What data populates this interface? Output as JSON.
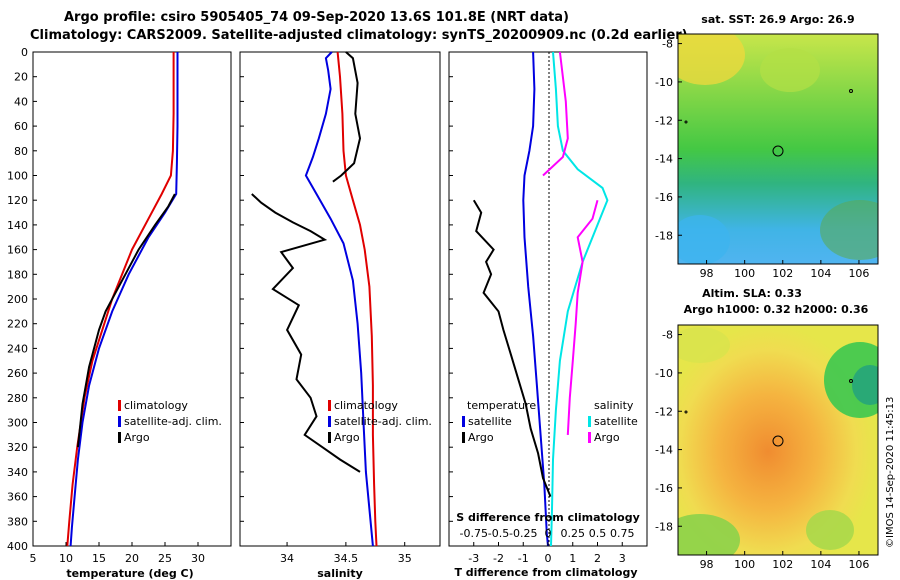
{
  "title": {
    "line1": "Argo profile: csiro 5905405_74 09-Sep-2020 13.6S 101.8E (NRT data)",
    "line2": "Climatology: CARS2009. Satellite-adjusted climatology: synTS_20200909.nc (0.2d earlier)"
  },
  "colors": {
    "climatology": "#e00000",
    "satellite": "#0000e0",
    "argo": "#000000",
    "s_diff": "#ff00ff",
    "t_diff": "#00e6e6"
  },
  "depth_ticks": [
    "0",
    "20",
    "40",
    "60",
    "80",
    "100",
    "120",
    "140",
    "160",
    "180",
    "200",
    "220",
    "240",
    "260",
    "280",
    "300",
    "320",
    "340",
    "360",
    "380",
    "400"
  ],
  "chart_data": [
    {
      "type": "line",
      "title": "",
      "xlabel": "temperature (deg C)",
      "ylabel": "",
      "xlim": [
        5,
        35
      ],
      "ylim": [
        400,
        0
      ],
      "xticks": [
        "5",
        "10",
        "15",
        "20",
        "25",
        "30"
      ],
      "legend": [
        "climatology",
        "satellite-adj. clim.",
        "Argo"
      ],
      "series": [
        {
          "name": "climatology",
          "points": [
            [
              26.3,
              0
            ],
            [
              26.3,
              50
            ],
            [
              26.2,
              80
            ],
            [
              25.9,
              100
            ],
            [
              24.5,
              115
            ],
            [
              22.5,
              135
            ],
            [
              20,
              160
            ],
            [
              17,
              200
            ],
            [
              15.5,
              225
            ],
            [
              14,
              250
            ],
            [
              12.8,
              280
            ],
            [
              11.7,
              320
            ],
            [
              11,
              350
            ],
            [
              10.5,
              380
            ],
            [
              10.2,
              400
            ]
          ]
        },
        {
          "name": "satellite-adj. clim.",
          "points": [
            [
              26.9,
              0
            ],
            [
              26.9,
              60
            ],
            [
              26.8,
              90
            ],
            [
              26.7,
              115
            ],
            [
              25,
              130
            ],
            [
              22.5,
              150
            ],
            [
              19.5,
              180
            ],
            [
              17,
              210
            ],
            [
              15,
              240
            ],
            [
              13.5,
              270
            ],
            [
              12.5,
              300
            ],
            [
              11.8,
              330
            ],
            [
              11.3,
              360
            ],
            [
              10.9,
              385
            ],
            [
              10.7,
              400
            ]
          ]
        },
        {
          "name": "Argo",
          "points": [
            [
              26.5,
              115
            ],
            [
              25.5,
              125
            ],
            [
              23.5,
              140
            ],
            [
              21,
              160
            ],
            [
              20.5,
              165
            ],
            [
              19,
              180
            ],
            [
              17.5,
              195
            ],
            [
              16,
              210
            ],
            [
              15,
              225
            ],
            [
              14.5,
              235
            ],
            [
              14,
              245
            ],
            [
              13.5,
              255
            ],
            [
              13,
              270
            ],
            [
              12.5,
              285
            ],
            [
              12.1,
              305
            ],
            [
              11.8,
              320
            ]
          ]
        }
      ]
    },
    {
      "type": "line",
      "title": "",
      "xlabel": "salinity",
      "ylabel": "",
      "xlim": [
        33.6,
        35.3
      ],
      "ylim": [
        400,
        0
      ],
      "xticks": [
        "34",
        "34.5",
        "35"
      ],
      "legend": [
        "climatology",
        "satellite-adj. clim.",
        "Argo"
      ],
      "series": [
        {
          "name": "climatology",
          "points": [
            [
              34.43,
              0
            ],
            [
              34.45,
              20
            ],
            [
              34.47,
              50
            ],
            [
              34.48,
              80
            ],
            [
              34.5,
              100
            ],
            [
              34.56,
              120
            ],
            [
              34.62,
              140
            ],
            [
              34.66,
              160
            ],
            [
              34.7,
              190
            ],
            [
              34.72,
              230
            ],
            [
              34.73,
              270
            ],
            [
              34.73,
              310
            ],
            [
              34.74,
              350
            ],
            [
              34.75,
              380
            ],
            [
              34.76,
              400
            ]
          ]
        },
        {
          "name": "satellite-adj. clim.",
          "points": [
            [
              34.38,
              0
            ],
            [
              34.33,
              5
            ],
            [
              34.35,
              15
            ],
            [
              34.37,
              30
            ],
            [
              34.33,
              50
            ],
            [
              34.27,
              70
            ],
            [
              34.22,
              85
            ],
            [
              34.16,
              100
            ],
            [
              34.25,
              115
            ],
            [
              34.37,
              135
            ],
            [
              34.48,
              155
            ],
            [
              34.56,
              185
            ],
            [
              34.6,
              220
            ],
            [
              34.63,
              260
            ],
            [
              34.65,
              300
            ],
            [
              34.67,
              340
            ],
            [
              34.7,
              370
            ],
            [
              34.73,
              400
            ]
          ]
        },
        {
          "name": "Argo",
          "points": [
            [
              34.5,
              0
            ],
            [
              34.56,
              5
            ],
            [
              34.6,
              25
            ],
            [
              34.58,
              50
            ],
            [
              34.62,
              70
            ],
            [
              34.57,
              90
            ],
            [
              34.46,
              100
            ],
            [
              34.39,
              105
            ]
          ]
        },
        {
          "name": "Argo (deep)",
          "points": [
            [
              33.7,
              115
            ],
            [
              33.78,
              122
            ],
            [
              33.9,
              130
            ],
            [
              34.05,
              138
            ],
            [
              34.2,
              145
            ],
            [
              34.32,
              152
            ],
            [
              33.95,
              162
            ],
            [
              34.05,
              175
            ],
            [
              33.88,
              192
            ],
            [
              34.1,
              205
            ],
            [
              34.0,
              225
            ],
            [
              34.12,
              245
            ],
            [
              34.08,
              265
            ],
            [
              34.2,
              280
            ],
            [
              34.25,
              295
            ],
            [
              34.15,
              310
            ],
            [
              34.3,
              320
            ],
            [
              34.45,
              330
            ],
            [
              34.62,
              340
            ]
          ]
        }
      ]
    },
    {
      "type": "line",
      "title": "",
      "xlabel": "T difference from climatology",
      "ylabel": "",
      "xlim": [
        -4,
        4
      ],
      "ylim": [
        400,
        0
      ],
      "xticks": [
        "-3",
        "-2",
        "-1",
        "0",
        "1",
        "2",
        "3"
      ],
      "secondary_xlabel": "S difference from climatology",
      "secondary_xlim": [
        -1,
        1
      ],
      "secondary_xticks": [
        "-0.75",
        "-0.5",
        "-0.25",
        "0",
        "0.25",
        "0.5",
        "0.75"
      ],
      "legend_left": {
        "heading": "temperature",
        "items": [
          "satellite",
          "Argo"
        ]
      },
      "legend_right": {
        "heading": "salinity",
        "items": [
          "satellite",
          "Argo"
        ]
      },
      "series": [
        {
          "name": "T satellite",
          "axis": "T",
          "points": [
            [
              -0.6,
              0
            ],
            [
              -0.55,
              30
            ],
            [
              -0.6,
              60
            ],
            [
              -0.75,
              80
            ],
            [
              -0.95,
              100
            ],
            [
              -1.0,
              120
            ],
            [
              -0.95,
              150
            ],
            [
              -0.8,
              190
            ],
            [
              -0.6,
              230
            ],
            [
              -0.45,
              270
            ],
            [
              -0.3,
              310
            ],
            [
              -0.15,
              350
            ],
            [
              -0.05,
              390
            ],
            [
              0,
              400
            ]
          ]
        },
        {
          "name": "T Argo",
          "axis": "T",
          "points": [
            [
              -3.0,
              120
            ],
            [
              -2.7,
              130
            ],
            [
              -2.9,
              145
            ],
            [
              -2.2,
              160
            ],
            [
              -2.5,
              170
            ],
            [
              -2.3,
              180
            ],
            [
              -2.6,
              195
            ],
            [
              -2.0,
              210
            ],
            [
              -1.8,
              225
            ],
            [
              -1.5,
              245
            ],
            [
              -1.2,
              265
            ],
            [
              -0.9,
              285
            ],
            [
              -0.7,
              305
            ],
            [
              -0.4,
              325
            ],
            [
              -0.2,
              345
            ],
            [
              0.1,
              360
            ]
          ]
        },
        {
          "name": "S satellite",
          "axis": "S",
          "points": [
            [
              0.05,
              0
            ],
            [
              0.08,
              30
            ],
            [
              0.1,
              60
            ],
            [
              0.15,
              80
            ],
            [
              0.3,
              95
            ],
            [
              0.55,
              110
            ],
            [
              0.6,
              120
            ],
            [
              0.5,
              140
            ],
            [
              0.35,
              170
            ],
            [
              0.2,
              210
            ],
            [
              0.12,
              250
            ],
            [
              0.08,
              290
            ],
            [
              0.05,
              330
            ],
            [
              0.04,
              370
            ],
            [
              0.03,
              400
            ]
          ]
        },
        {
          "name": "S Argo",
          "axis": "S",
          "points": [
            [
              0.12,
              0
            ],
            [
              0.18,
              40
            ],
            [
              0.2,
              70
            ],
            [
              0.15,
              85
            ],
            [
              -0.05,
              100
            ]
          ]
        },
        {
          "name": "S Argo (deep)",
          "axis": "S",
          "points": [
            [
              0.5,
              120
            ],
            [
              0.45,
              135
            ],
            [
              0.3,
              150
            ],
            [
              0.35,
              170
            ],
            [
              0.3,
              195
            ],
            [
              0.28,
              220
            ],
            [
              0.25,
              250
            ],
            [
              0.22,
              280
            ],
            [
              0.2,
              310
            ]
          ]
        }
      ]
    }
  ],
  "maps": [
    {
      "title": "sat. SST: 26.9 Argo: 26.9",
      "yticks": [
        "-8",
        "-10",
        "-12",
        "-14",
        "-16",
        "-18"
      ],
      "xticks": [
        "98",
        "100",
        "102",
        "104",
        "106"
      ]
    },
    {
      "title1": "Altim. SLA: 0.33",
      "title2": "Argo h1000: 0.32 h2000: 0.36",
      "yticks": [
        "-8",
        "-10",
        "-12",
        "-14",
        "-16",
        "-18"
      ],
      "xticks": [
        "98",
        "100",
        "102",
        "104",
        "106"
      ]
    }
  ],
  "credit": "©IMOS 14-Sep-2020 11:45:13"
}
